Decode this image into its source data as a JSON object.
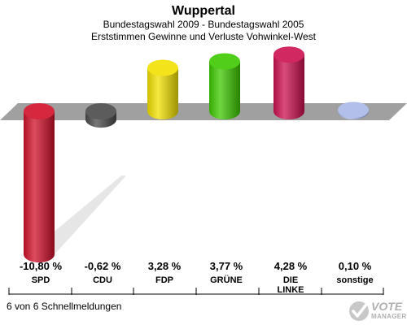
{
  "header": {
    "title": "Wuppertal",
    "subtitle1": "Bundestagswahl 2009 - Bundestagswahl 2005",
    "subtitle2": "Erststimmen Gewinne und Verluste Vohwinkel-West"
  },
  "footer": {
    "status": "6 von 6 Schnellmeldungen"
  },
  "logo": {
    "line1": "VOTE",
    "line2": "MANAGER"
  },
  "chart_data": {
    "type": "bar",
    "categories": [
      "SPD",
      "CDU",
      "FDP",
      "GRÜNE",
      "DIE LINKE",
      "sonstige"
    ],
    "category_lines": [
      [
        "SPD"
      ],
      [
        "CDU"
      ],
      [
        "FDP"
      ],
      [
        "GRÜNE"
      ],
      [
        "DIE",
        "LINKE"
      ],
      [
        "sonstige"
      ]
    ],
    "values": [
      -10.8,
      -0.62,
      3.28,
      3.77,
      4.28,
      0.1
    ],
    "value_labels": [
      "-10,80 %",
      "-0,62 %",
      "3,28 %",
      "3,77 %",
      "4,28 %",
      "0,10 %"
    ],
    "colors": [
      "#d0102a",
      "#4a4a4a",
      "#f2e000",
      "#3ec800",
      "#cc1050",
      "#a8b8e8"
    ],
    "title": "Wuppertal",
    "xlabel": "",
    "ylabel": ""
  }
}
